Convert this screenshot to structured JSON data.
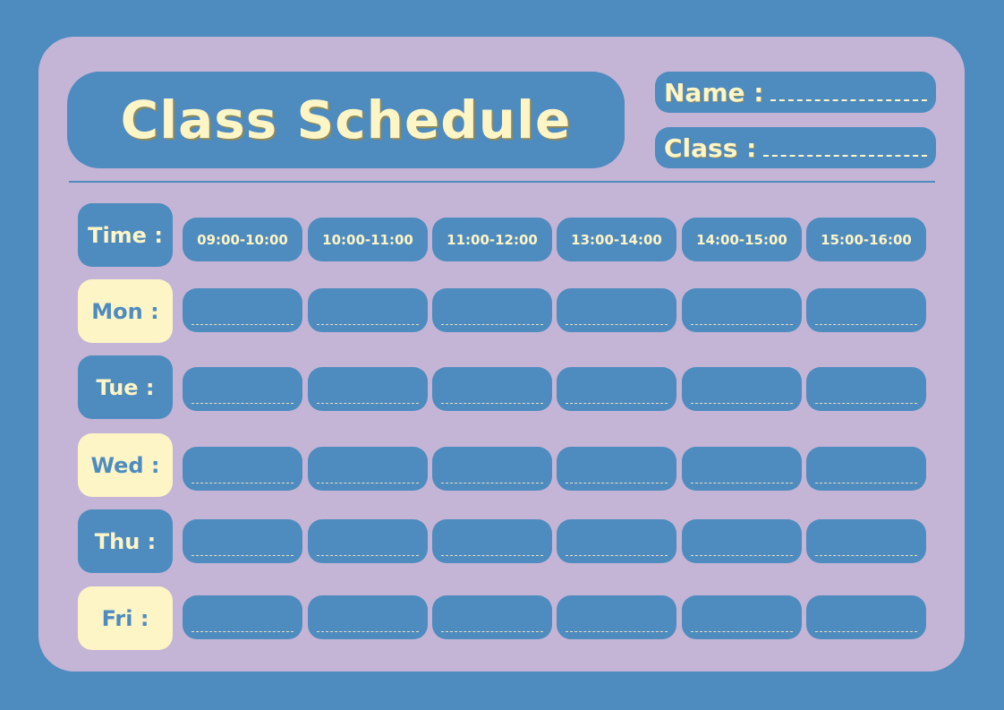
{
  "title": "Class Schedule",
  "fields": {
    "name_label": "Name :",
    "class_label": "Class :"
  },
  "time_label": "Time :",
  "time_slots": [
    "09:00-10:00",
    "10:00-11:00",
    "11:00-12:00",
    "13:00-14:00",
    "14:00-15:00",
    "15:00-16:00"
  ],
  "days": [
    "Mon :",
    "Tue :",
    "Wed :",
    "Thu :",
    "Fri :"
  ],
  "colors": {
    "background": "#4e8bbf",
    "card": "#c4b5d6",
    "accent_cream": "#fdf5c6"
  }
}
